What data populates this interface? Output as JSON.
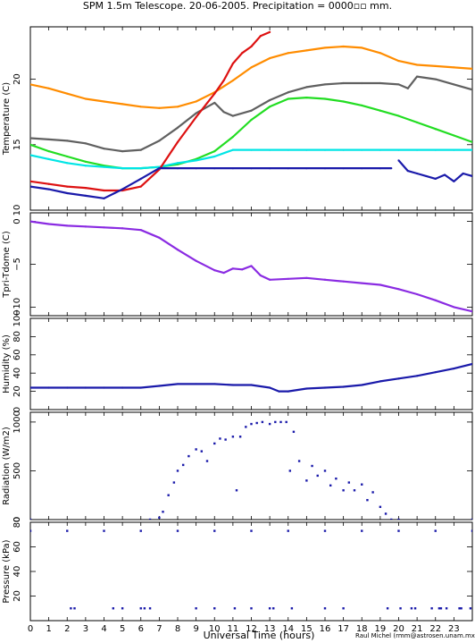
{
  "figure": {
    "title": "SPM 1.5m Telescope. 20-06-2005. Precipitation = 0000▫▫ mm.",
    "xlabel": "Universal Time (hours)",
    "credit": "Raul Michel (rmm@astrosen.unam.mx)"
  },
  "chart_data": [
    {
      "type": "line",
      "ylabel": "Temperature (C)",
      "xlim": [
        0,
        24
      ],
      "ylim": [
        10,
        24
      ],
      "yticks": [
        10,
        15,
        20
      ],
      "series": [
        {
          "color": "#ff8c00",
          "x": [
            0,
            1,
            2,
            3,
            4,
            5,
            6,
            7,
            8,
            9,
            10,
            11,
            12,
            13,
            14,
            15,
            16,
            17,
            18,
            19,
            20,
            21,
            22,
            23,
            24
          ],
          "y": [
            19.6,
            19.3,
            18.9,
            18.5,
            18.3,
            18.1,
            17.9,
            17.8,
            17.9,
            18.3,
            19.0,
            19.9,
            20.9,
            21.6,
            22.0,
            22.2,
            22.4,
            22.5,
            22.4,
            22.0,
            21.4,
            21.1,
            21.0,
            20.9,
            20.8
          ]
        },
        {
          "color": "#606060",
          "x": [
            0,
            1,
            2,
            3,
            4,
            5,
            6,
            7,
            8,
            9,
            10,
            10.5,
            11,
            12,
            13,
            14,
            15,
            16,
            17,
            18,
            19,
            20,
            20.5,
            21,
            22,
            23,
            24
          ],
          "y": [
            15.5,
            15.4,
            15.3,
            15.1,
            14.7,
            14.5,
            14.6,
            15.3,
            16.3,
            17.4,
            18.2,
            17.5,
            17.2,
            17.6,
            18.4,
            19.0,
            19.4,
            19.6,
            19.7,
            19.7,
            19.7,
            19.6,
            19.3,
            20.2,
            20.0,
            19.6,
            19.2
          ]
        },
        {
          "color": "#22dd22",
          "x": [
            0,
            1,
            2,
            3,
            4,
            5,
            6,
            7,
            8,
            9,
            10,
            11,
            12,
            13,
            14,
            15,
            16,
            17,
            18,
            19,
            20,
            21,
            22,
            23,
            24
          ],
          "y": [
            15.0,
            14.5,
            14.1,
            13.7,
            13.4,
            13.2,
            13.2,
            13.3,
            13.5,
            13.9,
            14.5,
            15.6,
            16.9,
            17.9,
            18.5,
            18.6,
            18.5,
            18.3,
            18.0,
            17.6,
            17.2,
            16.7,
            16.2,
            15.7,
            15.2
          ]
        },
        {
          "color": "#00e5e5",
          "x": [
            0,
            1,
            2,
            3,
            4,
            5,
            6,
            7,
            8,
            9,
            10,
            11,
            12,
            13,
            14,
            15,
            16,
            17,
            18,
            19,
            20,
            21,
            22,
            23,
            24
          ],
          "y": [
            14.2,
            13.9,
            13.6,
            13.4,
            13.3,
            13.2,
            13.2,
            13.3,
            13.6,
            13.8,
            14.1,
            14.6,
            14.6,
            14.6,
            14.6,
            14.6,
            14.6,
            14.6,
            14.6,
            14.6,
            14.6,
            14.6,
            14.6,
            14.6,
            14.6
          ]
        },
        {
          "color": "#dd1111",
          "x": [
            0,
            1,
            2,
            3,
            4,
            5,
            6,
            7,
            8,
            9,
            10,
            10.5,
            11,
            11.5,
            12,
            12.5,
            13
          ],
          "y": [
            12.2,
            12.0,
            11.8,
            11.7,
            11.5,
            11.5,
            11.8,
            13.1,
            15.2,
            17.1,
            18.9,
            19.9,
            21.2,
            22.0,
            22.5,
            23.3,
            23.6
          ]
        },
        {
          "color": "#1a1aaa",
          "x": [
            0,
            1,
            2,
            3,
            4,
            5,
            6,
            7,
            8,
            9,
            10,
            11,
            12,
            13,
            14,
            15,
            16,
            17,
            18,
            19,
            19.6
          ],
          "y": [
            11.8,
            11.6,
            11.3,
            11.1,
            10.9,
            11.6,
            12.4,
            13.2,
            13.2,
            13.2,
            13.2,
            13.2,
            13.2,
            13.2,
            13.2,
            13.2,
            13.2,
            13.2,
            13.2,
            13.2,
            13.2
          ]
        },
        {
          "color": "#1a1aaa",
          "x": [
            20,
            20.5,
            21,
            21.5,
            22,
            22.5,
            23,
            23.5,
            24
          ],
          "y": [
            13.8,
            13.0,
            12.8,
            12.6,
            12.4,
            12.7,
            12.2,
            12.8,
            12.6
          ]
        }
      ]
    },
    {
      "type": "line",
      "ylabel": "Tpri-Tdome (C)",
      "xlim": [
        0,
        24
      ],
      "ylim": [
        -11,
        1
      ],
      "yticks": [
        0,
        -5,
        -10
      ],
      "yticklabels": [
        "0",
        "−5",
        "−10"
      ],
      "series": [
        {
          "color": "#8a2be2",
          "x": [
            0,
            1,
            2,
            3,
            4,
            5,
            6,
            7,
            8,
            9,
            10,
            10.5,
            11,
            11.5,
            12,
            12.5,
            13,
            14,
            15,
            16,
            17,
            18,
            19,
            20,
            21,
            22,
            23,
            24
          ],
          "y": [
            0,
            -0.3,
            -0.5,
            -0.6,
            -0.7,
            -0.8,
            -1.0,
            -1.9,
            -3.3,
            -4.6,
            -5.7,
            -6.0,
            -5.5,
            -5.6,
            -5.2,
            -6.3,
            -6.8,
            -6.7,
            -6.6,
            -6.8,
            -7.0,
            -7.2,
            -7.4,
            -7.9,
            -8.5,
            -9.2,
            -10.0,
            -10.5
          ]
        }
      ]
    },
    {
      "type": "line",
      "ylabel": "Humidity (%)",
      "xlim": [
        0,
        24
      ],
      "ylim": [
        0,
        100
      ],
      "yticks": [
        0,
        20,
        40,
        60,
        80,
        100
      ],
      "series": [
        {
          "color": "#1a1aaa",
          "x": [
            0,
            1,
            2,
            3,
            4,
            5,
            6,
            7,
            8,
            9,
            10,
            11,
            12,
            13,
            13.5,
            14,
            15,
            16,
            17,
            18,
            19,
            20,
            21,
            22,
            23,
            24
          ],
          "y": [
            24,
            24,
            24,
            24,
            24,
            24,
            24,
            26,
            28,
            28,
            28,
            27,
            27,
            24,
            20,
            20,
            23,
            24,
            25,
            27,
            31,
            34,
            37,
            41,
            45,
            50
          ]
        }
      ]
    },
    {
      "type": "scatter",
      "ylabel": "Radiation (W/m2)",
      "xlim": [
        0,
        24
      ],
      "ylim": [
        0,
        1100
      ],
      "yticks": [
        0,
        500,
        1000
      ],
      "series": [
        {
          "color": "#1a1aaa",
          "x": [
            0,
            6.5,
            7,
            7.2,
            7.5,
            7.8,
            8,
            8.3,
            8.6,
            9,
            9.3,
            9.6,
            10,
            10.3,
            10.6,
            11,
            11.2,
            11.4,
            11.7,
            12,
            12.3,
            12.6,
            13,
            13.3,
            13.6,
            13.9,
            14.1,
            14.3,
            14.6,
            15,
            15.3,
            15.6,
            16,
            16.3,
            16.6,
            17,
            17.3,
            17.6,
            18,
            18.3,
            18.6,
            19,
            19.3,
            19.6,
            20,
            24
          ],
          "y": [
            0,
            0,
            20,
            80,
            250,
            380,
            500,
            560,
            650,
            720,
            700,
            600,
            780,
            830,
            820,
            850,
            300,
            850,
            950,
            980,
            990,
            1000,
            980,
            1000,
            1000,
            1000,
            500,
            900,
            600,
            400,
            550,
            450,
            500,
            350,
            420,
            300,
            380,
            300,
            360,
            200,
            280,
            130,
            60,
            0,
            0,
            0
          ]
        }
      ]
    },
    {
      "type": "scatter",
      "ylabel": "Pressure (kPa)",
      "xlim": [
        0,
        24
      ],
      "ylim": [
        0,
        80
      ],
      "yticks": [
        20,
        40,
        60,
        80
      ],
      "series": [
        {
          "color": "#1a1aaa",
          "x": [
            0,
            2,
            4,
            6,
            8,
            10,
            12,
            14,
            16,
            18,
            20,
            22,
            24
          ],
          "y": [
            73,
            73,
            73,
            73,
            73,
            73,
            73,
            73,
            73,
            73,
            73,
            73,
            73
          ]
        },
        {
          "color": "#1a1aaa",
          "x": [
            2.2,
            2.4,
            4.5,
            5.0,
            6.0,
            6.2,
            6.5,
            9.0,
            10.0,
            11.1,
            12.0,
            13.0,
            13.2,
            14.2,
            16.0,
            17.0,
            19.4,
            20.1,
            20.7,
            20.9,
            21.8,
            22.2,
            22.3,
            22.6,
            23.3,
            23.4,
            23.9
          ],
          "y": [
            10,
            10,
            10,
            10,
            10,
            10,
            10,
            10,
            10,
            10,
            10,
            10,
            10,
            10,
            10,
            10,
            10,
            10,
            10,
            10,
            10,
            10,
            10,
            10,
            10,
            10,
            10
          ]
        }
      ]
    }
  ],
  "x_ticks": [
    0,
    1,
    2,
    3,
    4,
    5,
    6,
    7,
    8,
    9,
    10,
    11,
    12,
    13,
    14,
    15,
    16,
    17,
    18,
    19,
    20,
    21,
    22,
    23
  ]
}
